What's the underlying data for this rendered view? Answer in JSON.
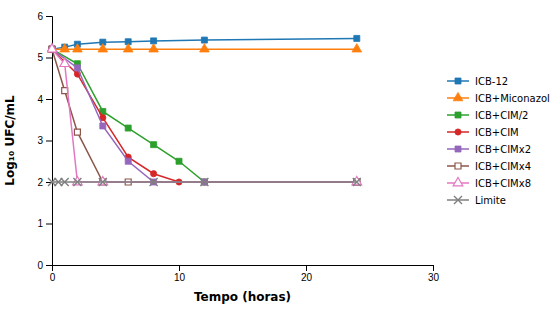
{
  "chart_data": {
    "type": "line",
    "xlabel": "Tempo (horas)",
    "ylabel": "Log₁₀ UFC/mL",
    "xlim": [
      0,
      30
    ],
    "ylim": [
      0,
      6
    ],
    "xticks": [
      0,
      10,
      20,
      30
    ],
    "yticks": [
      0,
      1,
      2,
      3,
      4,
      5,
      6
    ],
    "grid": false,
    "legend": "right",
    "line_style": "solid",
    "series": [
      {
        "name": "ICB-12",
        "marker": "square",
        "x": [
          0,
          1,
          2,
          4,
          6,
          8,
          12,
          24
        ],
        "values": [
          5.2,
          5.25,
          5.32,
          5.37,
          5.38,
          5.4,
          5.42,
          5.46
        ]
      },
      {
        "name": "ICB+Miconazol",
        "marker": "triangle",
        "x": [
          0,
          1,
          2,
          4,
          6,
          8,
          12,
          24
        ],
        "values": [
          5.2,
          5.2,
          5.2,
          5.2,
          5.2,
          5.2,
          5.2,
          5.2
        ]
      },
      {
        "name": "ICB+CIM/2",
        "marker": "square",
        "x": [
          0,
          2,
          4,
          6,
          8,
          10,
          12,
          24
        ],
        "values": [
          5.2,
          4.85,
          3.7,
          3.3,
          2.9,
          2.5,
          2.0,
          2.0
        ]
      },
      {
        "name": "ICB+CIM",
        "marker": "circle",
        "x": [
          0,
          2,
          4,
          6,
          8,
          10,
          12,
          24
        ],
        "values": [
          5.2,
          4.6,
          3.55,
          2.6,
          2.2,
          2.0,
          2.0,
          2.0
        ]
      },
      {
        "name": "ICB+CIMx2",
        "marker": "square",
        "x": [
          0,
          2,
          4,
          6,
          8,
          12,
          24
        ],
        "values": [
          5.2,
          4.75,
          3.35,
          2.5,
          2.0,
          2.0,
          2.0
        ]
      },
      {
        "name": "ICB+CIMx4",
        "marker": "square-open",
        "x": [
          0,
          1,
          2,
          4,
          6,
          24
        ],
        "values": [
          5.2,
          4.2,
          3.2,
          2.0,
          2.0,
          2.0
        ]
      },
      {
        "name": "ICB+CIMx8",
        "marker": "triangle-open",
        "x": [
          0,
          1,
          2,
          4,
          24
        ],
        "values": [
          5.2,
          4.85,
          2.0,
          2.0,
          2.0
        ]
      },
      {
        "name": "Limite",
        "marker": "x",
        "x": [
          0,
          0.5,
          1,
          2,
          4,
          8,
          12,
          24
        ],
        "values": [
          2.0,
          2.0,
          2.0,
          2.0,
          2.0,
          2.0,
          2.0,
          2.0
        ]
      }
    ]
  }
}
